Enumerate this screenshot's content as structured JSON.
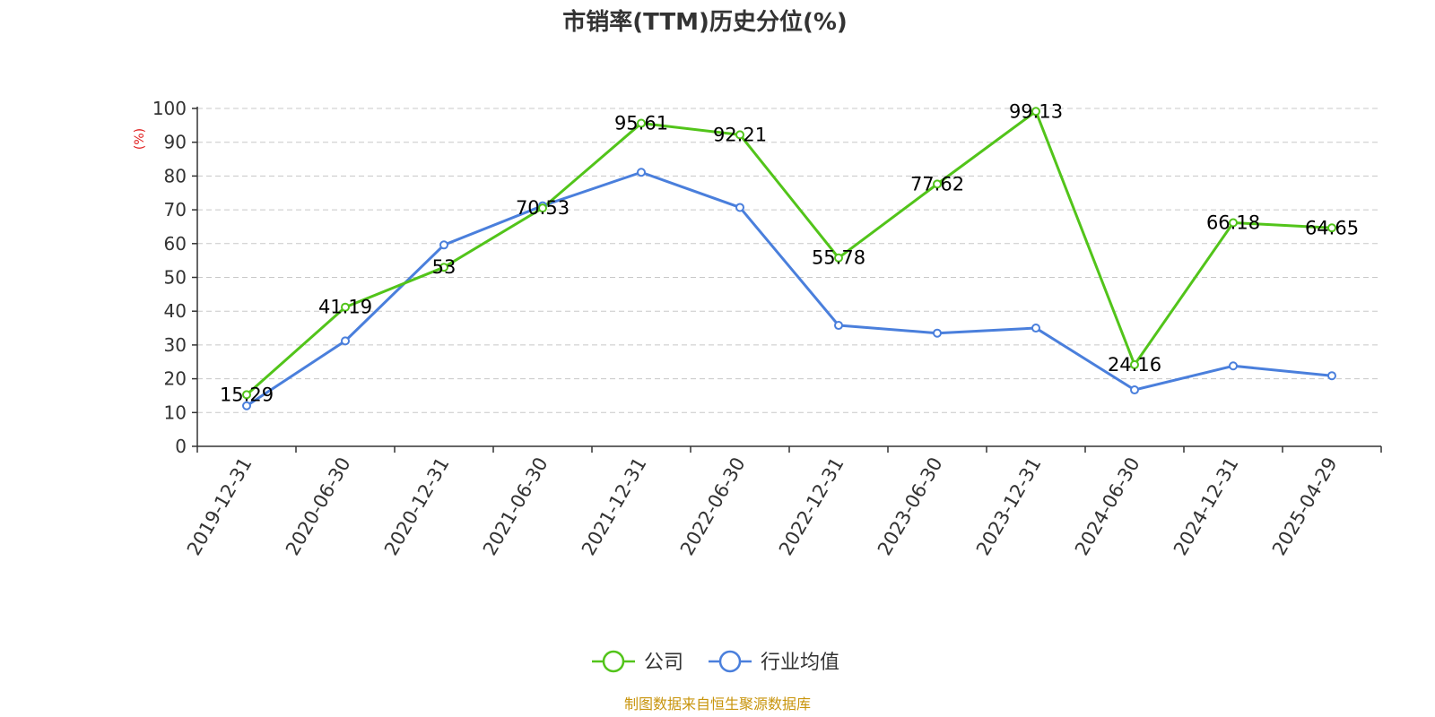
{
  "chart_data": {
    "type": "line",
    "title": "市销率(TTM)历史分位(%)",
    "ylabel": "(%)",
    "xlabel": "",
    "ylim": [
      0,
      100
    ],
    "yticks": [
      0,
      10,
      20,
      30,
      40,
      50,
      60,
      70,
      80,
      90,
      100
    ],
    "categories": [
      "2019-12-31",
      "2020-06-30",
      "2020-12-31",
      "2021-06-30",
      "2021-12-31",
      "2022-06-30",
      "2022-12-31",
      "2023-06-30",
      "2023-12-31",
      "2024-06-30",
      "2024-12-31",
      "2025-04-29"
    ],
    "series": [
      {
        "name": "公司",
        "color": "#52c41a",
        "values": [
          15.29,
          41.19,
          53,
          70.53,
          95.61,
          92.21,
          55.78,
          77.62,
          99.13,
          24.16,
          66.18,
          64.65
        ],
        "labels": [
          "15.29",
          "41.19",
          "53",
          "70.53",
          "95.61",
          "92.21",
          "55.78",
          "77.62",
          "99.13",
          "24.16",
          "66.18",
          "64.65"
        ]
      },
      {
        "name": "行业均值",
        "color": "#4a7fdc",
        "values": [
          12,
          31.2,
          59.6,
          71.2,
          81.1,
          70.7,
          35.8,
          33.5,
          35,
          16.7,
          23.8,
          20.9
        ]
      }
    ],
    "grid": true,
    "legend_position": "bottom-center",
    "ylabel_color": "#e01d1d"
  },
  "source": {
    "text": "制图数据来自恒生聚源数据库",
    "color": "#c8940c"
  }
}
